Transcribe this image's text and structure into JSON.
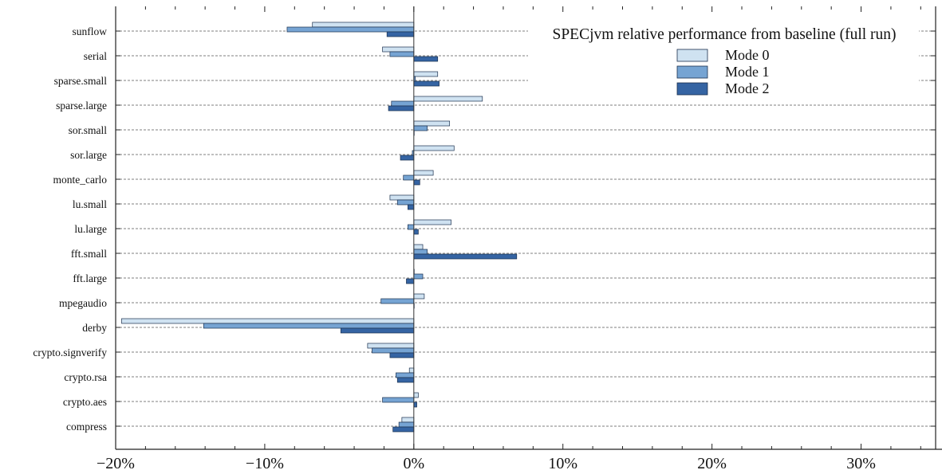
{
  "chart_data": {
    "type": "bar",
    "orientation": "horizontal",
    "title": "SPECjvm relative performance from baseline (full run)",
    "categories": [
      "sunflow",
      "serial",
      "sparse.small",
      "sparse.large",
      "sor.small",
      "sor.large",
      "monte_carlo",
      "lu.small",
      "lu.large",
      "fft.small",
      "fft.large",
      "mpegaudio",
      "derby",
      "crypto.signverify",
      "crypto.rsa",
      "crypto.aes",
      "compress"
    ],
    "series": [
      {
        "name": "Mode 0",
        "color": "#cfe2f1",
        "values": [
          -6.8,
          -2.1,
          1.6,
          4.6,
          2.4,
          2.7,
          1.3,
          -1.6,
          2.5,
          0.6,
          0.0,
          0.7,
          -19.6,
          -3.1,
          -0.3,
          0.3,
          -0.8
        ]
      },
      {
        "name": "Mode 1",
        "color": "#76a4d3",
        "values": [
          -8.5,
          -1.6,
          0.1,
          -1.5,
          0.9,
          -0.1,
          -0.7,
          -1.1,
          -0.4,
          0.9,
          0.6,
          -2.2,
          -14.1,
          -2.8,
          -1.2,
          -2.1,
          -1.0
        ]
      },
      {
        "name": "Mode 2",
        "color": "#3564a3",
        "values": [
          -1.8,
          1.6,
          1.7,
          -1.7,
          0.0,
          -0.9,
          0.4,
          -0.4,
          0.3,
          6.9,
          -0.5,
          0.0,
          -4.9,
          -1.6,
          -1.1,
          0.2,
          -1.4
        ]
      }
    ],
    "xlim": [
      -20,
      35
    ],
    "xticks": [
      -20,
      -10,
      0,
      10,
      20,
      30
    ],
    "xtick_labels": [
      "−20%",
      "−10%",
      "0%",
      "10%",
      "20%",
      "30%"
    ],
    "grid": "horizontal dashed lines at categories",
    "legend_placement": "top-right"
  }
}
